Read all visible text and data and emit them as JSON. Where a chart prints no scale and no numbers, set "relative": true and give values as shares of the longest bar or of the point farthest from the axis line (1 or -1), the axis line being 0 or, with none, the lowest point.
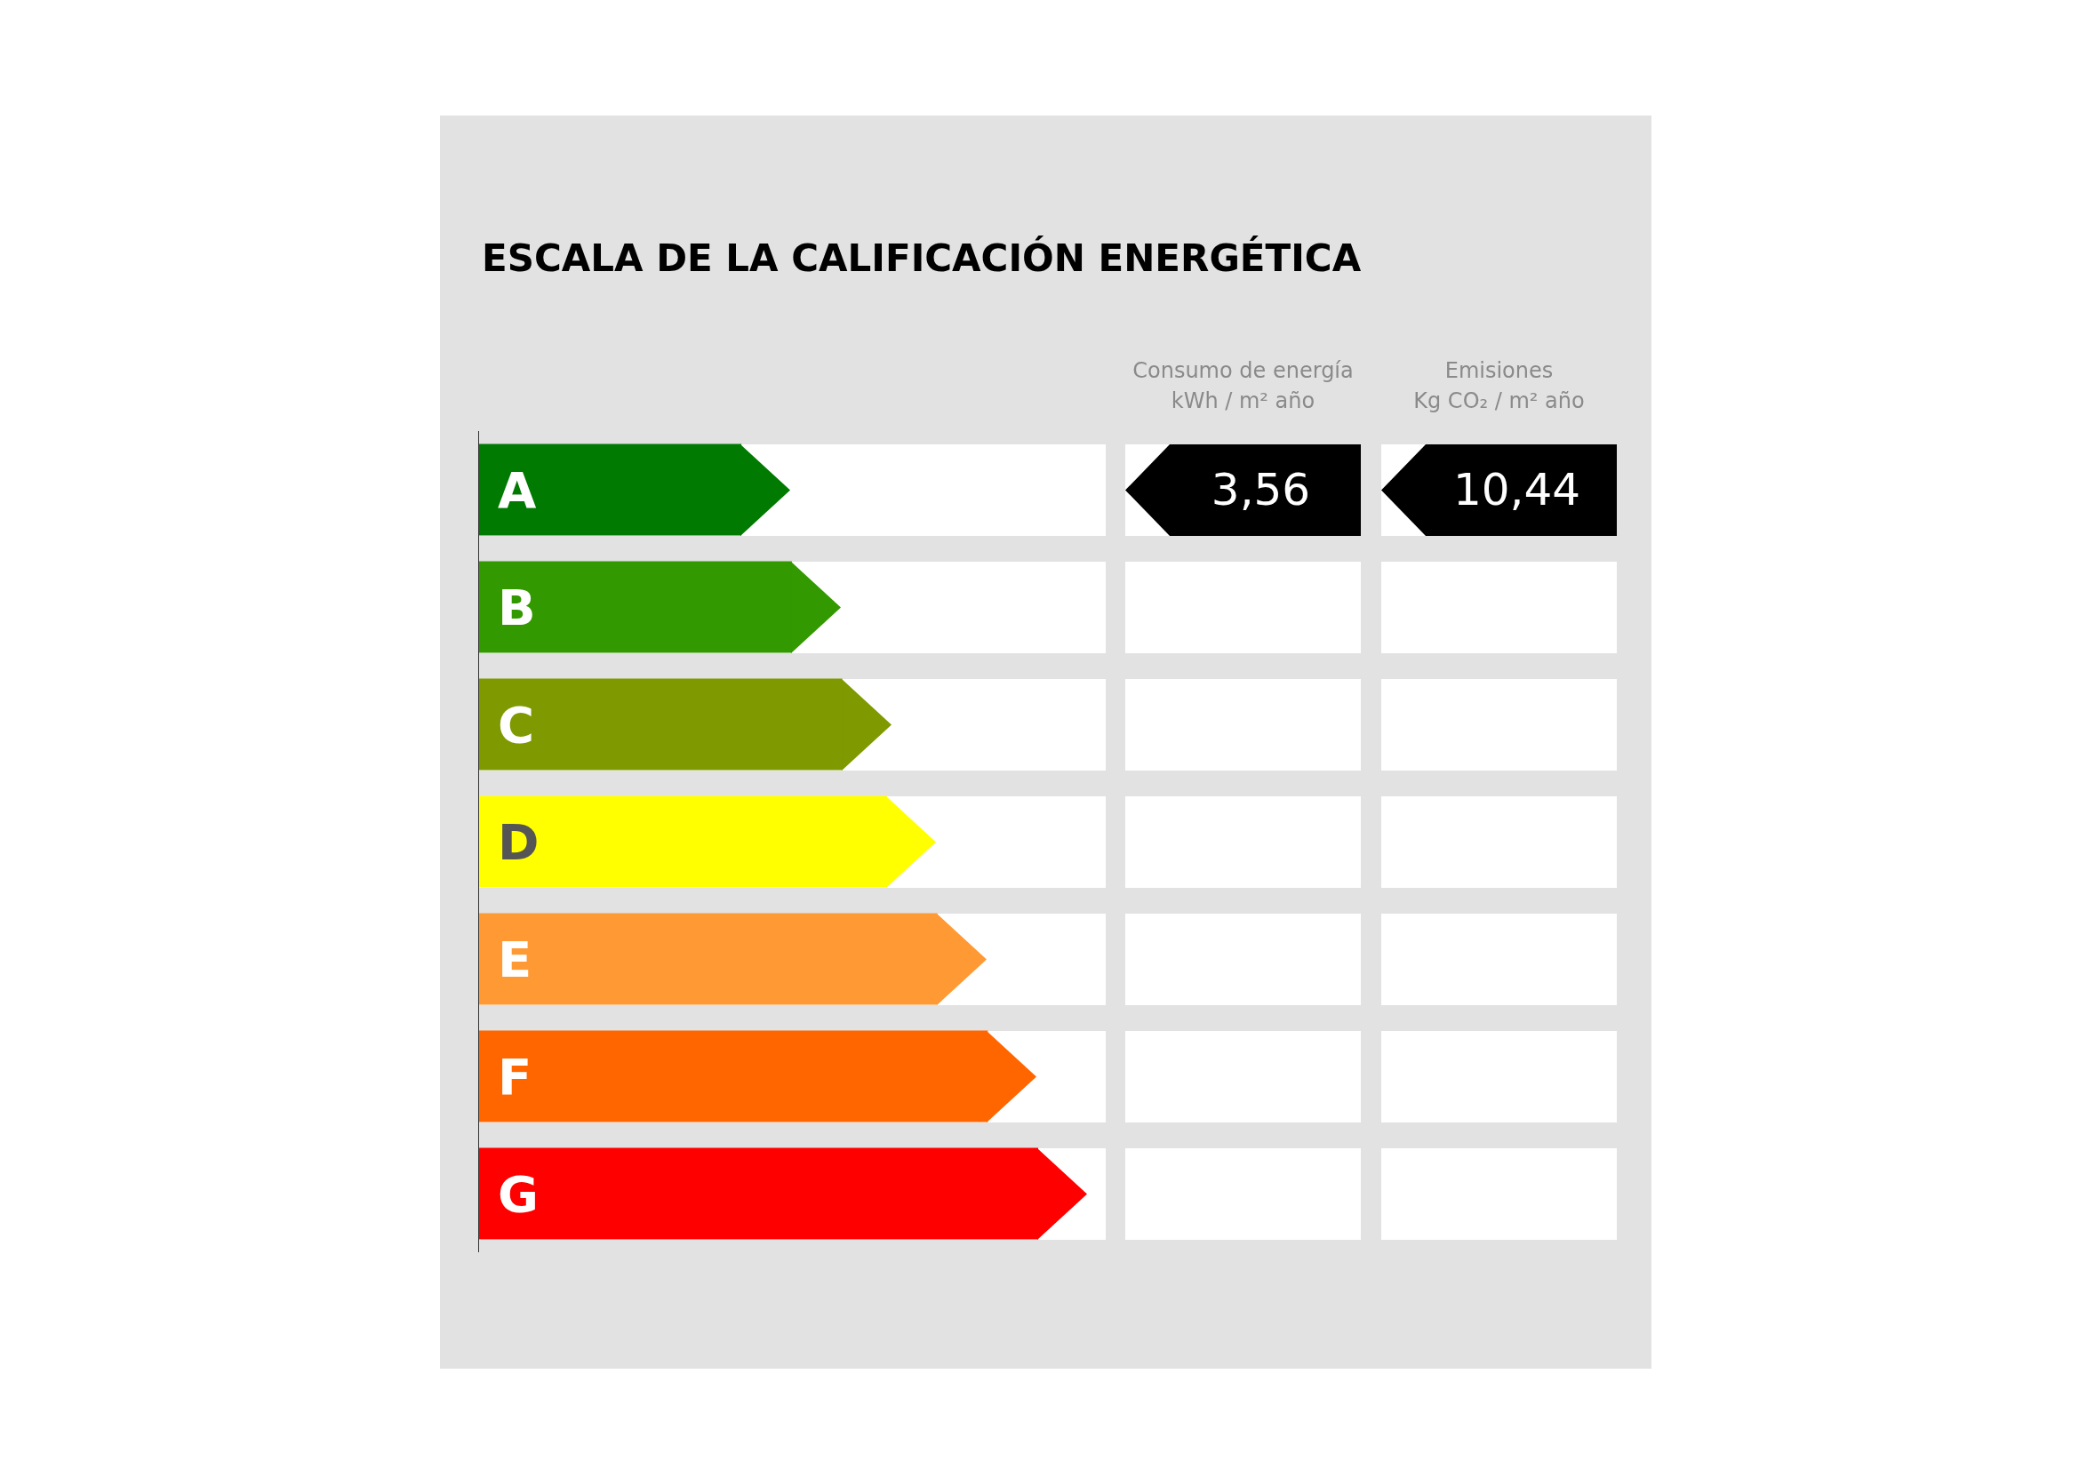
{
  "chart_data": {
    "type": "bar",
    "orientation": "horizontal",
    "relative": true,
    "title": "ESCALA DE LA CALIFICACIÓN ENERGÉTICA",
    "categories": [
      "A",
      "B",
      "C",
      "D",
      "E",
      "F",
      "G"
    ],
    "values": [
      0.47,
      0.56,
      0.65,
      0.73,
      0.82,
      0.91,
      1
    ],
    "colors": [
      "#007a00",
      "#339900",
      "#7f9900",
      "#ffff00",
      "#ff9933",
      "#ff6600",
      "#ff0000"
    ],
    "annotations": [
      "Consumo de energía\nkWh / m² año",
      "Emisiones\nKg CO₂ / m² año",
      "3,56",
      "10,44"
    ]
  }
}
